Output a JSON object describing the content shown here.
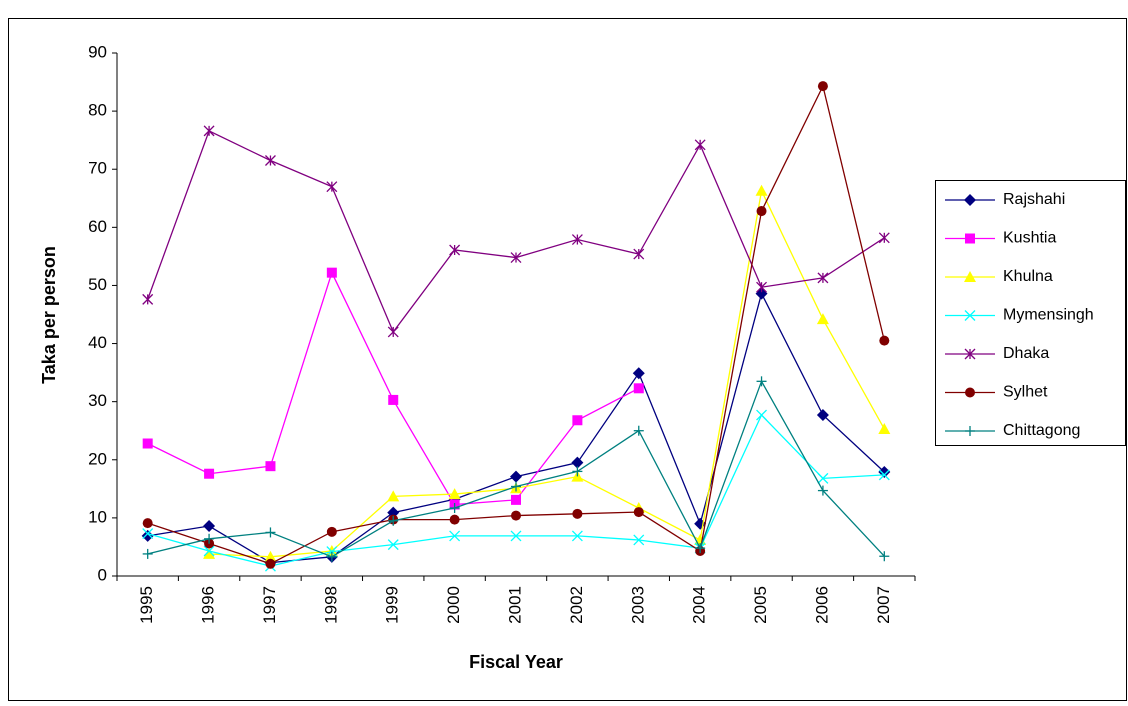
{
  "chart_data": {
    "type": "line",
    "x_label": "Fiscal Year",
    "y_label": "Taka per person",
    "categories": [
      "1995",
      "1996",
      "1997",
      "1998",
      "1999",
      "2000",
      "2001",
      "2002",
      "2003",
      "2004",
      "2005",
      "2006",
      "2007"
    ],
    "ylim": [
      0,
      90
    ],
    "yticks": [
      0,
      10,
      20,
      30,
      40,
      50,
      60,
      70,
      80,
      90
    ],
    "legend": "right",
    "series": [
      {
        "name": "Rajshahi",
        "color": "#000080",
        "marker": "diamond",
        "values": [
          6.9,
          8.6,
          2.3,
          3.3,
          10.9,
          13.2,
          17.1,
          19.5,
          34.9,
          9.0,
          48.6,
          27.7,
          17.9
        ]
      },
      {
        "name": "Kushtia",
        "color": "#FF00FF",
        "marker": "square",
        "values": [
          22.8,
          17.6,
          18.9,
          52.2,
          30.3,
          12.3,
          13.1,
          26.8,
          32.3,
          null,
          null,
          null,
          null
        ]
      },
      {
        "name": "Khulna",
        "color": "#FFFF00",
        "marker": "triangle",
        "values": [
          null,
          3.8,
          3.3,
          4.3,
          13.7,
          14.1,
          15.1,
          17.1,
          11.7,
          6.2,
          66.3,
          44.2,
          25.3
        ]
      },
      {
        "name": "Mymensingh",
        "color": "#00FFFF",
        "marker": "x",
        "values": [
          7.3,
          4.3,
          1.7,
          4.2,
          5.4,
          6.9,
          6.9,
          6.9,
          6.2,
          4.8,
          27.7,
          16.8,
          17.4
        ]
      },
      {
        "name": "Dhaka",
        "color": "#800080",
        "marker": "star",
        "values": [
          47.6,
          76.6,
          71.5,
          67.0,
          42.0,
          56.1,
          54.8,
          57.9,
          55.4,
          74.2,
          49.7,
          51.3,
          58.2
        ]
      },
      {
        "name": "Sylhet",
        "color": "#800000",
        "marker": "circle",
        "values": [
          9.1,
          5.6,
          2.1,
          7.6,
          9.7,
          9.7,
          10.4,
          10.7,
          11.0,
          4.3,
          62.8,
          84.3,
          40.5
        ]
      },
      {
        "name": "Chittagong",
        "color": "#008080",
        "marker": "plus",
        "values": [
          3.8,
          6.4,
          7.5,
          3.3,
          9.5,
          11.7,
          15.4,
          18.0,
          25.0,
          4.8,
          33.5,
          14.7,
          3.4
        ]
      }
    ]
  }
}
